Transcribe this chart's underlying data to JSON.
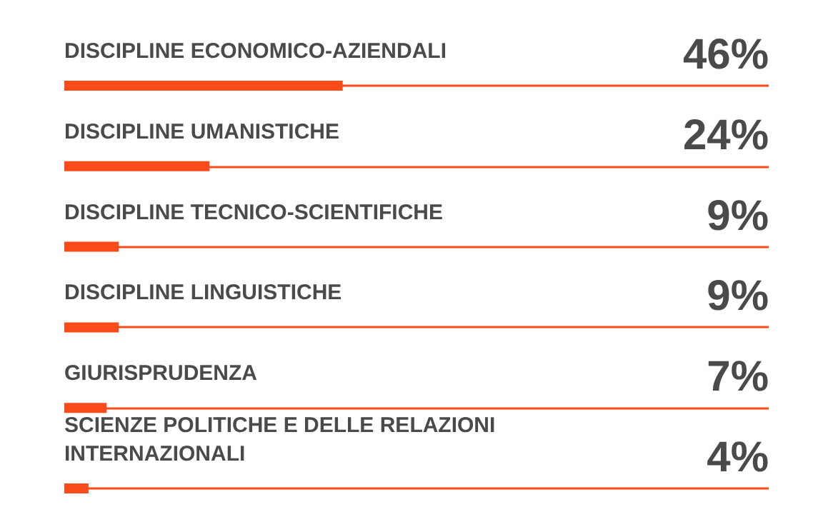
{
  "chart_data": {
    "type": "bar",
    "orientation": "horizontal",
    "categories": [
      "DISCIPLINE ECONOMICO-AZIENDALI",
      "DISCIPLINE UMANISTICHE",
      "DISCIPLINE TECNICO-SCIENTIFICHE",
      "DISCIPLINE LINGUISTICHE",
      "GIURISPRUDENZA",
      "SCIENZE POLITICHE E DELLE RELAZIONI INTERNAZIONALI"
    ],
    "values": [
      46,
      24,
      9,
      9,
      7,
      4
    ],
    "value_labels": [
      "46%",
      "24%",
      "9%",
      "9%",
      "7%",
      "4%"
    ],
    "color": "#fa4b1b",
    "grid": "y"
  }
}
